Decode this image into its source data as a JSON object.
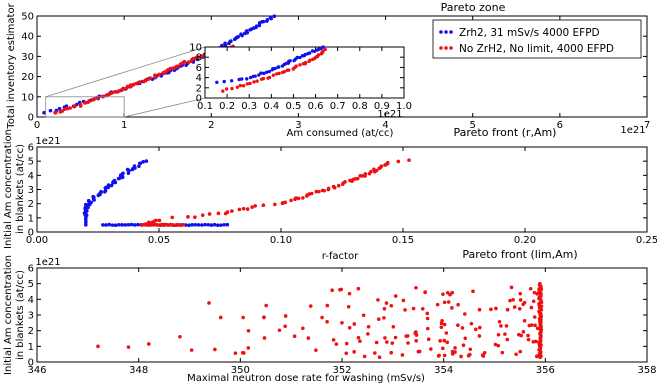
{
  "colors": {
    "blue": "#1111ee",
    "red": "#ee1111",
    "axis": "#000000"
  },
  "chart_data": [
    {
      "type": "scatter",
      "title": "Pareto zone",
      "xlabel": "Am consumed (at/cc)",
      "ylabel": "Total inventory estimator",
      "x_exponent": "1e21",
      "xlim": [
        0,
        7
      ],
      "ylim": [
        0,
        50
      ],
      "xticks": [
        "0",
        "1",
        "2",
        "3",
        "4",
        "5",
        "6",
        "7"
      ],
      "yticks": [
        "0",
        "10",
        "20",
        "30",
        "40",
        "50"
      ],
      "legend": {
        "placement": "top-right",
        "entries": [
          "Zrh2, 31 mSv/s 4000 EFPD",
          "No ZrH2, No limit, 4000 EFPD"
        ]
      },
      "series": [
        {
          "name": "Zrh2, 31 mSv/s 4000 EFPD",
          "color": "blue",
          "curve": [
            [
              0.1,
              2.5
            ],
            [
              0.3,
              4.5
            ],
            [
              0.6,
              8
            ],
            [
              1.0,
              14
            ],
            [
              1.5,
              22
            ],
            [
              2.0,
              32
            ],
            [
              2.4,
              42
            ],
            [
              2.72,
              50
            ]
          ]
        },
        {
          "name": "No ZrH2, No limit, 4000 EFPD",
          "color": "red",
          "curve": [
            [
              0.2,
              2
            ],
            [
              0.5,
              6
            ],
            [
              0.8,
              11
            ],
            [
              1.1,
              16
            ],
            [
              1.4,
              21
            ],
            [
              1.7,
              27
            ],
            [
              2.0,
              32
            ],
            [
              2.25,
              35
            ]
          ]
        }
      ],
      "inset": {
        "x_exponent": "1e21",
        "xlim": [
          0.1,
          1.0
        ],
        "ylim": [
          0,
          10
        ],
        "xticks": [
          "0.1",
          "0.2",
          "0.3",
          "0.4",
          "0.5",
          "0.6",
          "0.7",
          "0.8",
          "0.9",
          "1.0"
        ],
        "yticks": [
          "0",
          "2",
          "4",
          "6",
          "8",
          "10"
        ],
        "series": [
          {
            "color": "blue",
            "curve": [
              [
                0.15,
                3
              ],
              [
                0.25,
                3.5
              ],
              [
                0.3,
                4
              ],
              [
                0.4,
                5.5
              ],
              [
                0.5,
                7.5
              ],
              [
                0.6,
                9.4
              ],
              [
                0.63,
                10
              ]
            ]
          },
          {
            "color": "red",
            "curve": [
              [
                0.18,
                1.5
              ],
              [
                0.25,
                2.2
              ],
              [
                0.35,
                3.5
              ],
              [
                0.45,
                5
              ],
              [
                0.55,
                6.8
              ],
              [
                0.62,
                8.6
              ],
              [
                0.64,
                9.5
              ]
            ]
          }
        ]
      }
    },
    {
      "type": "scatter",
      "title": "Pareto front (r,Am)",
      "xlabel": "r-factor",
      "ylabel": "Initial Am concentration\nin blankets (at/cc)",
      "y_exponent": "1e21",
      "xlim": [
        0.0,
        0.25
      ],
      "ylim": [
        0,
        6
      ],
      "xticks": [
        "0.00",
        "0.05",
        "0.10",
        "0.15",
        "0.20",
        "0.25"
      ],
      "yticks": [
        "0",
        "1",
        "2",
        "3",
        "4",
        "5",
        "6"
      ],
      "series": [
        {
          "color": "blue",
          "curve": [
            [
              0.02,
              1.1
            ],
            [
              0.021,
              2.0
            ],
            [
              0.026,
              2.8
            ],
            [
              0.03,
              3.3
            ],
            [
              0.035,
              4.0
            ],
            [
              0.04,
              4.6
            ],
            [
              0.044,
              5.0
            ]
          ],
          "baseline": {
            "x": [
              0.027,
              0.078
            ],
            "y": 0.5
          }
        },
        {
          "color": "red",
          "curve": [
            [
              0.045,
              0.5
            ],
            [
              0.05,
              0.9
            ],
            [
              0.06,
              1.0
            ],
            [
              0.075,
              1.3
            ],
            [
              0.09,
              1.8
            ],
            [
              0.1,
              2.0
            ],
            [
              0.11,
              2.5
            ],
            [
              0.12,
              3.1
            ],
            [
              0.13,
              3.7
            ],
            [
              0.138,
              4.3
            ],
            [
              0.145,
              4.9
            ],
            [
              0.153,
              5.0
            ]
          ],
          "baseline": {
            "x": [
              0.043,
              0.06
            ],
            "y": 0.5
          }
        }
      ]
    },
    {
      "type": "scatter",
      "title": "Pareto front (lim,Am)",
      "xlabel": "Maximal neutron dose rate for washing (mSv/s)",
      "ylabel": "Initial Am concentration\nin blankets (at/cc)",
      "y_exponent": "1e21",
      "xlim": [
        346,
        358
      ],
      "ylim": [
        0,
        6
      ],
      "xticks": [
        "346",
        "348",
        "350",
        "352",
        "354",
        "356",
        "358"
      ],
      "yticks": [
        "0",
        "1",
        "2",
        "3",
        "4",
        "5",
        "6"
      ],
      "series": [
        {
          "color": "red",
          "cluster_x": [
            347.2,
            355.9
          ],
          "vline_x": 355.9,
          "vline_y": [
            0.3,
            5.0
          ]
        }
      ]
    }
  ]
}
